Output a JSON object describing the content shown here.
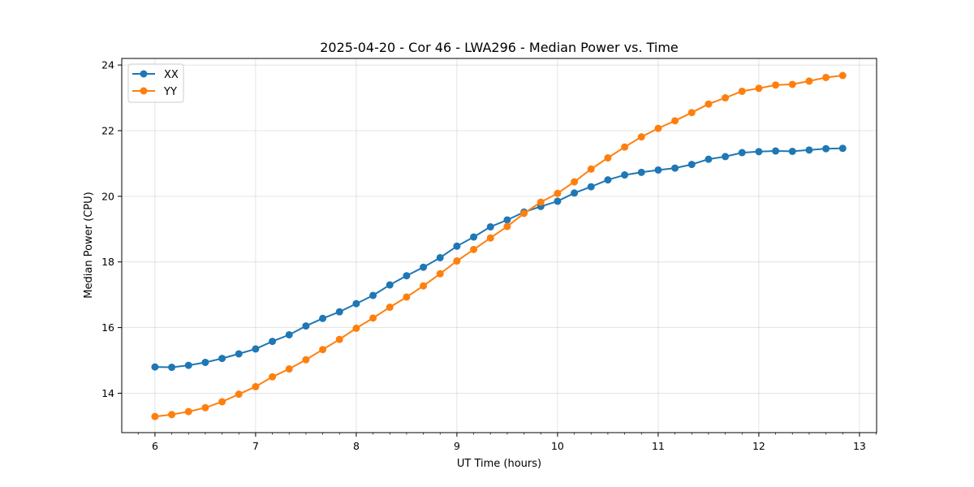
{
  "chart_data": {
    "type": "line",
    "title": "2025-04-20 - Cor 46 - LWA296 - Median Power vs. Time",
    "xlabel": "UT Time (hours)",
    "ylabel": "Median Power (CPU)",
    "xlim": [
      5.67,
      13.17
    ],
    "ylim": [
      12.8,
      24.2
    ],
    "xticks": [
      6,
      7,
      8,
      9,
      10,
      11,
      12,
      13
    ],
    "xtick_labels": [
      "6",
      "7",
      "8",
      "9",
      "10",
      "11",
      "12",
      "13"
    ],
    "yticks": [
      14,
      16,
      18,
      20,
      22,
      24
    ],
    "ytick_labels": [
      "14",
      "16",
      "18",
      "20",
      "22",
      "24"
    ],
    "grid": true,
    "legend_position": "upper left",
    "x": [
      6.0,
      6.1667,
      6.3333,
      6.5,
      6.6667,
      6.8333,
      7.0,
      7.1667,
      7.3333,
      7.5,
      7.6667,
      7.8333,
      8.0,
      8.1667,
      8.3333,
      8.5,
      8.6667,
      8.8333,
      9.0,
      9.1667,
      9.3333,
      9.5,
      9.6667,
      9.8333,
      10.0,
      10.1667,
      10.3333,
      10.5,
      10.6667,
      10.8333,
      11.0,
      11.1667,
      11.3333,
      11.5,
      11.6667,
      11.8333,
      12.0,
      12.1667,
      12.3333,
      12.5,
      12.6667,
      12.8333
    ],
    "series": [
      {
        "name": "XX",
        "color": "#1f77b4",
        "values": [
          14.8,
          14.79,
          14.85,
          14.94,
          15.06,
          15.2,
          15.35,
          15.58,
          15.78,
          16.05,
          16.28,
          16.48,
          16.73,
          16.98,
          17.3,
          17.58,
          17.84,
          18.13,
          18.48,
          18.76,
          19.07,
          19.28,
          19.52,
          19.69,
          19.85,
          20.1,
          20.29,
          20.5,
          20.65,
          20.73,
          20.8,
          20.86,
          20.97,
          21.13,
          21.21,
          21.33,
          21.36,
          21.38,
          21.37,
          21.41,
          21.45,
          21.46
        ]
      },
      {
        "name": "YY",
        "color": "#ff7f0e",
        "values": [
          13.29,
          13.35,
          13.44,
          13.56,
          13.74,
          13.97,
          14.2,
          14.5,
          14.74,
          15.02,
          15.33,
          15.64,
          15.98,
          16.29,
          16.62,
          16.93,
          17.27,
          17.64,
          18.03,
          18.38,
          18.73,
          19.08,
          19.48,
          19.82,
          20.09,
          20.44,
          20.83,
          21.17,
          21.5,
          21.81,
          22.07,
          22.3,
          22.55,
          22.81,
          23.0,
          23.2,
          23.29,
          23.39,
          23.41,
          23.51,
          23.62,
          23.68
        ]
      }
    ]
  }
}
